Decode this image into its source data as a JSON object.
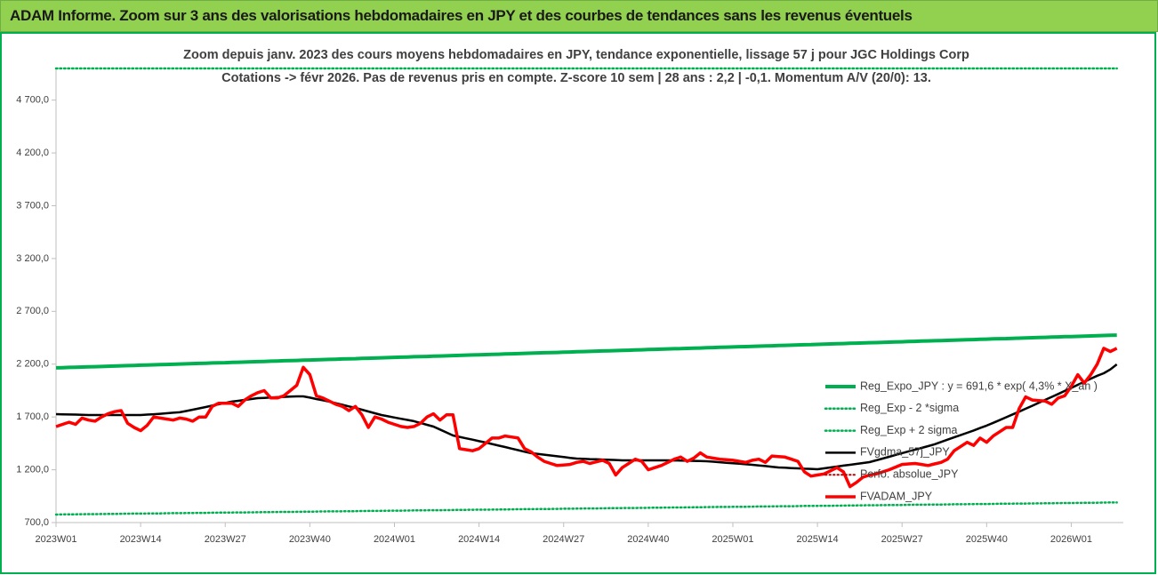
{
  "header": {
    "title": "ADAM Informe. Zoom sur 3 ans des valorisations hebdomadaires en JPY et des courbes de tendances sans les revenus éventuels"
  },
  "chart_data": {
    "type": "line",
    "title": "Zoom depuis janv. 2023 des cours moyens hebdomadaires en JPY, tendance exponentielle, lissage 57 j pour JGC Holdings Corp",
    "subtitle": "Cotations -> févr 2026. Pas de revenus pris en compte. Z-score 10 sem | 28 ans : 2,2 | -0,1. Momentum A/V (20/0): 13.",
    "ylim": [
      700,
      5000
    ],
    "yticks": [
      {
        "value": 700,
        "label": "700,0"
      },
      {
        "value": 1200,
        "label": "1 200,0"
      },
      {
        "value": 1700,
        "label": "1 700,0"
      },
      {
        "value": 2200,
        "label": "2 200,0"
      },
      {
        "value": 2700,
        "label": "2 700,0"
      },
      {
        "value": 3200,
        "label": "3 200,0"
      },
      {
        "value": 3700,
        "label": "3 700,0"
      },
      {
        "value": 4200,
        "label": "4 200,0"
      },
      {
        "value": 4700,
        "label": "4 700,0"
      }
    ],
    "grid": false,
    "legend": "right",
    "categories": [
      "2023W01",
      null,
      null,
      null,
      null,
      null,
      null,
      null,
      null,
      null,
      null,
      null,
      null,
      "2023W14",
      null,
      null,
      null,
      null,
      null,
      null,
      null,
      null,
      null,
      null,
      null,
      null,
      "2023W27",
      null,
      null,
      null,
      null,
      null,
      null,
      null,
      null,
      null,
      null,
      null,
      null,
      "2023W40",
      null,
      null,
      null,
      null,
      null,
      null,
      null,
      null,
      null,
      null,
      null,
      null,
      "2024W01",
      null,
      null,
      null,
      null,
      null,
      null,
      null,
      null,
      null,
      null,
      null,
      null,
      "2024W14",
      null,
      null,
      null,
      null,
      null,
      null,
      null,
      null,
      null,
      null,
      null,
      null,
      "2024W27",
      null,
      null,
      null,
      null,
      null,
      null,
      null,
      null,
      null,
      null,
      null,
      null,
      "2024W40",
      null,
      null,
      null,
      null,
      null,
      null,
      null,
      null,
      null,
      null,
      null,
      null,
      "2025W01",
      null,
      null,
      null,
      null,
      null,
      null,
      null,
      null,
      null,
      null,
      null,
      null,
      "2025W14",
      null,
      null,
      null,
      null,
      null,
      null,
      null,
      null,
      null,
      null,
      null,
      null,
      "2025W27",
      null,
      null,
      null,
      null,
      null,
      null,
      null,
      null,
      null,
      null,
      null,
      null,
      "2025W40",
      null,
      null,
      null,
      null,
      null,
      null,
      null,
      null,
      null,
      null,
      null,
      null,
      "2026W01",
      null,
      null,
      null,
      null,
      null,
      null,
      null
    ],
    "series": [
      {
        "name": "Reg_Expo_JPY : y = 691,6 * exp( 4,3% * X_an )",
        "color": "#00b050",
        "style": "solid",
        "width": 4,
        "values": [
          2165,
          2167,
          2169,
          2171,
          2173,
          2175,
          2176,
          2178,
          2180,
          2182,
          2184,
          2186,
          2188,
          2190,
          2192,
          2194,
          2195,
          2197,
          2199,
          2201,
          2203,
          2205,
          2207,
          2209,
          2211,
          2213,
          2214,
          2216,
          2218,
          2220,
          2222,
          2224,
          2226,
          2228,
          2230,
          2232,
          2233,
          2235,
          2237,
          2239,
          2241,
          2243,
          2245,
          2247,
          2249,
          2251,
          2252,
          2254,
          2256,
          2258,
          2260,
          2262,
          2264,
          2266,
          2268,
          2270,
          2271,
          2273,
          2275,
          2277,
          2279,
          2281,
          2283,
          2285,
          2287,
          2289,
          2290,
          2292,
          2294,
          2296,
          2298,
          2300,
          2302,
          2304,
          2306,
          2308,
          2309,
          2311,
          2313,
          2315,
          2317,
          2319,
          2321,
          2323,
          2325,
          2327,
          2328,
          2330,
          2332,
          2334,
          2336,
          2338,
          2340,
          2342,
          2344,
          2346,
          2347,
          2349,
          2351,
          2353,
          2355,
          2357,
          2359,
          2361,
          2363,
          2365,
          2366,
          2368,
          2370,
          2372,
          2374,
          2376,
          2378,
          2380,
          2382,
          2384,
          2385,
          2387,
          2389,
          2391,
          2393,
          2395,
          2397,
          2399,
          2401,
          2403,
          2404,
          2406,
          2408,
          2410,
          2412,
          2414,
          2416,
          2418,
          2420,
          2422,
          2423,
          2425,
          2427,
          2429,
          2431,
          2433,
          2435,
          2437,
          2439,
          2441,
          2442,
          2444,
          2446,
          2448,
          2450,
          2452,
          2454,
          2456,
          2458,
          2460,
          2461,
          2463,
          2465,
          2467,
          2469,
          2471,
          2473,
          2475
        ]
      },
      {
        "name": "Reg_Exp - 2 *sigma",
        "color": "#00b050",
        "style": "dotted",
        "width": 2.5,
        "values": [
          776,
          777,
          778,
          778,
          779,
          780,
          780,
          781,
          782,
          782,
          783,
          784,
          785,
          785,
          786,
          787,
          787,
          788,
          789,
          789,
          790,
          791,
          792,
          792,
          793,
          794,
          794,
          795,
          796,
          796,
          797,
          798,
          799,
          799,
          800,
          801,
          801,
          802,
          803,
          803,
          804,
          805,
          806,
          806,
          807,
          808,
          808,
          809,
          810,
          810,
          811,
          812,
          813,
          813,
          814,
          815,
          815,
          816,
          817,
          817,
          818,
          819,
          820,
          820,
          821,
          822,
          822,
          823,
          824,
          824,
          825,
          826,
          827,
          827,
          828,
          829,
          829,
          830,
          831,
          831,
          832,
          833,
          834,
          834,
          835,
          836,
          836,
          837,
          838,
          838,
          839,
          840,
          841,
          841,
          842,
          843,
          843,
          844,
          845,
          845,
          846,
          847,
          848,
          848,
          849,
          850,
          850,
          851,
          852,
          852,
          853,
          854,
          855,
          855,
          856,
          857,
          857,
          858,
          859,
          859,
          860,
          861,
          862,
          862,
          863,
          864,
          864,
          865,
          866,
          866,
          867,
          868,
          869,
          869,
          870,
          871,
          871,
          872,
          873,
          873,
          874,
          875,
          876,
          876,
          877,
          878,
          878,
          879,
          880,
          880,
          881,
          882,
          883,
          883,
          884,
          885,
          885,
          886,
          887,
          887,
          888,
          889,
          890,
          890
        ]
      },
      {
        "name": "Reg_Exp + 2 sigma",
        "color": "#00b050",
        "style": "dotted",
        "width": 2.5,
        "values": [
          5000,
          5000,
          5000,
          5000,
          5000,
          5000,
          5000,
          5000,
          5000,
          5000,
          5000,
          5000,
          5000,
          5000,
          5000,
          5000,
          5000,
          5000,
          5000,
          5000,
          5000,
          5000,
          5000,
          5000,
          5000,
          5000,
          5000,
          5000,
          5000,
          5000,
          5000,
          5000,
          5000,
          5000,
          5000,
          5000,
          5000,
          5000,
          5000,
          5000,
          5000,
          5000,
          5000,
          5000,
          5000,
          5000,
          5000,
          5000,
          5000,
          5000,
          5000,
          5000,
          5000,
          5000,
          5000,
          5000,
          5000,
          5000,
          5000,
          5000,
          5000,
          5000,
          5000,
          5000,
          5000,
          5000,
          5000,
          5000,
          5000,
          5000,
          5000,
          5000,
          5000,
          5000,
          5000,
          5000,
          5000,
          5000,
          5000,
          5000,
          5000,
          5000,
          5000,
          5000,
          5000,
          5000,
          5000,
          5000,
          5000,
          5000,
          5000,
          5000,
          5000,
          5000,
          5000,
          5000,
          5000,
          5000,
          5000,
          5000,
          5000,
          5000,
          5000,
          5000,
          5000,
          5000,
          5000,
          5000,
          5000,
          5000,
          5000,
          5000,
          5000,
          5000,
          5000,
          5000,
          5000,
          5000,
          5000,
          5000,
          5000,
          5000,
          5000,
          5000,
          5000,
          5000,
          5000,
          5000,
          5000,
          5000,
          5000,
          5000,
          5000,
          5000,
          5000,
          5000,
          5000,
          5000,
          5000,
          5000,
          5000,
          5000,
          5000,
          5000,
          5000,
          5000,
          5000,
          5000,
          5000,
          5000,
          5000,
          5000,
          5000,
          5000,
          5000,
          5000,
          5000,
          5000,
          5000,
          5000,
          5000,
          5000,
          5000,
          5000
        ]
      },
      {
        "name": "FVgdma_57j_JPY",
        "color": "#000000",
        "style": "solid",
        "width": 2.5,
        "values": [
          1727,
          1725,
          1723,
          1722,
          1720,
          1718,
          1718,
          1718,
          1718,
          1718,
          1718,
          1718,
          1718,
          1718,
          1722,
          1726,
          1730,
          1735,
          1740,
          1744,
          1756,
          1769,
          1781,
          1794,
          1807,
          1820,
          1832,
          1845,
          1853,
          1861,
          1870,
          1878,
          1881,
          1884,
          1887,
          1890,
          1893,
          1895,
          1895,
          1883,
          1870,
          1858,
          1845,
          1830,
          1815,
          1800,
          1786,
          1769,
          1752,
          1735,
          1718,
          1706,
          1695,
          1683,
          1672,
          1660,
          1643,
          1626,
          1609,
          1581,
          1553,
          1525,
          1511,
          1498,
          1485,
          1471,
          1458,
          1444,
          1429,
          1415,
          1400,
          1386,
          1371,
          1357,
          1350,
          1343,
          1335,
          1328,
          1321,
          1313,
          1306,
          1304,
          1301,
          1299,
          1297,
          1294,
          1292,
          1289,
          1289,
          1289,
          1289,
          1289,
          1289,
          1289,
          1289,
          1288,
          1287,
          1286,
          1284,
          1283,
          1281,
          1276,
          1271,
          1266,
          1261,
          1257,
          1252,
          1247,
          1241,
          1235,
          1228,
          1222,
          1219,
          1216,
          1213,
          1210,
          1208,
          1205,
          1213,
          1222,
          1230,
          1239,
          1247,
          1255,
          1264,
          1272,
          1289,
          1306,
          1323,
          1340,
          1357,
          1374,
          1391,
          1407,
          1424,
          1441,
          1463,
          1485,
          1507,
          1528,
          1550,
          1572,
          1595,
          1618,
          1644,
          1670,
          1697,
          1724,
          1750,
          1778,
          1806,
          1834,
          1862,
          1890,
          1918,
          1946,
          1975,
          2004,
          2033,
          2062,
          2090,
          2114,
          2150,
          2198
        ]
      },
      {
        "name": "Perfo. absolue_JPY",
        "color": "#c00000",
        "style": "dotted",
        "width": 2,
        "values": [
          null,
          null,
          null,
          null,
          null,
          null,
          null,
          null,
          null,
          null,
          null,
          null,
          null,
          null,
          null,
          null,
          null,
          null,
          null,
          null,
          null,
          null,
          null,
          null,
          null,
          null,
          null,
          null,
          null,
          null,
          null,
          null,
          null,
          null,
          null,
          null,
          null,
          null,
          null,
          null,
          null,
          null,
          null,
          null,
          null,
          null,
          null,
          null,
          null,
          null,
          null,
          null,
          null,
          null,
          null,
          null,
          null,
          null,
          null,
          null,
          null,
          null,
          null,
          null,
          null,
          null,
          null,
          null,
          null,
          null,
          null,
          null,
          null,
          null,
          null,
          null,
          null,
          null,
          null,
          null,
          null,
          null,
          null,
          null,
          null,
          null,
          null,
          null,
          null,
          null,
          null,
          null,
          null,
          null,
          null,
          null,
          null,
          null,
          null,
          null,
          null,
          null,
          null,
          null,
          null,
          null,
          null,
          null,
          null,
          null,
          null,
          null,
          null,
          null,
          null,
          null,
          null,
          null,
          null,
          null,
          null,
          null,
          null,
          null,
          null,
          null,
          null,
          null,
          null,
          null,
          null,
          null,
          null,
          null,
          null,
          null,
          null,
          null,
          null,
          null,
          null,
          null,
          null,
          null,
          null,
          null,
          null,
          null,
          null,
          null,
          null,
          null,
          null,
          null,
          null,
          null,
          null,
          null,
          null,
          null,
          null,
          null,
          null,
          null
        ]
      },
      {
        "name": "FVADAM_JPY",
        "color": "#ff0000",
        "style": "solid",
        "width": 3.5,
        "values": [
          1609,
          1630,
          1650,
          1630,
          1690,
          1670,
          1660,
          1700,
          1730,
          1750,
          1760,
          1640,
          1600,
          1570,
          1620,
          1700,
          1690,
          1680,
          1670,
          1690,
          1680,
          1660,
          1700,
          1700,
          1800,
          1830,
          1830,
          1830,
          1800,
          1860,
          1900,
          1930,
          1950,
          1880,
          1880,
          1900,
          1950,
          2000,
          2170,
          2100,
          1900,
          1880,
          1850,
          1820,
          1800,
          1760,
          1800,
          1720,
          1600,
          1700,
          1680,
          1650,
          1630,
          1610,
          1600,
          1610,
          1640,
          1700,
          1730,
          1670,
          1720,
          1720,
          1400,
          1390,
          1380,
          1400,
          1450,
          1500,
          1500,
          1520,
          1510,
          1500,
          1400,
          1370,
          1320,
          1280,
          1260,
          1240,
          1245,
          1250,
          1270,
          1280,
          1260,
          1275,
          1290,
          1260,
          1150,
          1220,
          1260,
          1300,
          1280,
          1200,
          1220,
          1240,
          1270,
          1300,
          1320,
          1280,
          1310,
          1360,
          1320,
          1310,
          1300,
          1295,
          1290,
          1280,
          1270,
          1290,
          1300,
          1270,
          1330,
          1325,
          1320,
          1300,
          1280,
          1180,
          1140,
          1150,
          1160,
          1190,
          1220,
          1180,
          1040,
          1080,
          1130,
          1150,
          1160,
          1180,
          1200,
          1225,
          1250,
          1255,
          1260,
          1250,
          1240,
          1255,
          1270,
          1300,
          1380,
          1420,
          1460,
          1430,
          1500,
          1460,
          1520,
          1560,
          1600,
          1600,
          1780,
          1890,
          1860,
          1855,
          1850,
          1820,
          1880,
          1900,
          1990,
          2100,
          2020,
          2100,
          2200,
          2350,
          2320,
          2350
        ]
      }
    ]
  }
}
